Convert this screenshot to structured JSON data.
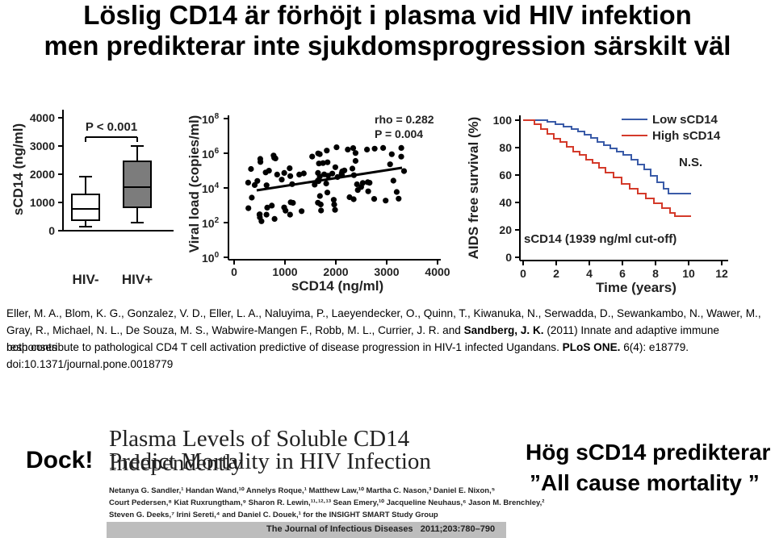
{
  "slide": {
    "title_line1": "Löslig CD14 är förhöjt i plasma vid HIV infektion",
    "title_line2": "men predikterar inte sjukdomsprogression särskilt väl"
  },
  "panel_a": {
    "ylabel": "sCD14 (ng/ml)",
    "pvalue": "P < 0.001",
    "yticks": [
      "0",
      "1000",
      "2000",
      "3000",
      "4000"
    ],
    "categories": [
      "HIV-",
      "HIV+"
    ]
  },
  "panel_b": {
    "ylabel": "Viral load (copies/ml)",
    "xlabel": "sCD14 (ng/ml)",
    "rho": "rho = 0.282",
    "pvalue": "P = 0.004",
    "xticks": [
      "0",
      "1000",
      "2000",
      "3000",
      "4000"
    ],
    "yticks": [
      "10",
      "10",
      "10",
      "10",
      "10"
    ],
    "yexp": [
      "0",
      "2",
      "4",
      "6",
      "8"
    ]
  },
  "panel_c": {
    "ylabel": "AIDS free survival (%)",
    "xlabel": "Time (years)",
    "legend_low": "Low sCD14",
    "legend_high": "High sCD14",
    "ns": "N.S.",
    "cutoff": "sCD14 (1939 ng/ml cut-off)",
    "xticks": [
      "0",
      "2",
      "4",
      "6",
      "8",
      "10",
      "12"
    ],
    "yticks": [
      "0",
      "20",
      "40",
      "60",
      "80",
      "100"
    ],
    "low_color": "#3a5ba8",
    "high_color": "#d43a2a"
  },
  "reference": {
    "line1": "Eller, M. A., Blom, K. G., Gonzalez, V. D., Eller, L. A., Naluyima, P., Laeyendecker, O., Quinn, T., Kiwanuka, N., Serwadda, D., Sewankambo, N., Wawer, M.,",
    "line2a": "Gray, R., Michael, N. L., De Souza, M. S., Wabwire-Mangen F., Robb, M. L., Currier, J. R. and ",
    "line2b": "Sandberg, J. K.",
    "line2c": " (2011) Innate and adaptive immune responses",
    "line3a": "both contribute to pathological CD4 T cell activation predictive of disease progression in HIV-1 infected Ugandans. ",
    "line3b": "PLoS ONE.",
    "line3c": " 6(4): e18779.",
    "line4": "doi:10.1371/journal.pone.0018779"
  },
  "bottom": {
    "dock": "Dock!",
    "paper_title1": "Plasma Levels of Soluble CD14 Independently",
    "paper_title2": "Predict Mortality in HIV Infection",
    "authors1": "Netanya G. Sandler,¹ Handan Wand,¹⁰ Annelys Roque,¹ Matthew Law,¹⁰ Martha C. Nason,³ Daniel E. Nixon,⁵",
    "authors2": "Court Pedersen,⁸ Kiat Ruxrungtham,⁹ Sharon R. Lewin,¹¹·¹²·¹³ Sean Emery,¹⁰ Jacqueline Neuhaus,⁶ Jason M. Brenchley,²",
    "authors3": "Steven G. Deeks,⁷ Irini Sereti,⁴ and Daniel C. Douek,¹ for the INSIGHT SMART Study Group",
    "journal": "The Journal of Infectious Diseases   2011;203:780–790",
    "claim1": "Hög sCD14 predikterar",
    "claim2": "”All cause mortality ”"
  }
}
